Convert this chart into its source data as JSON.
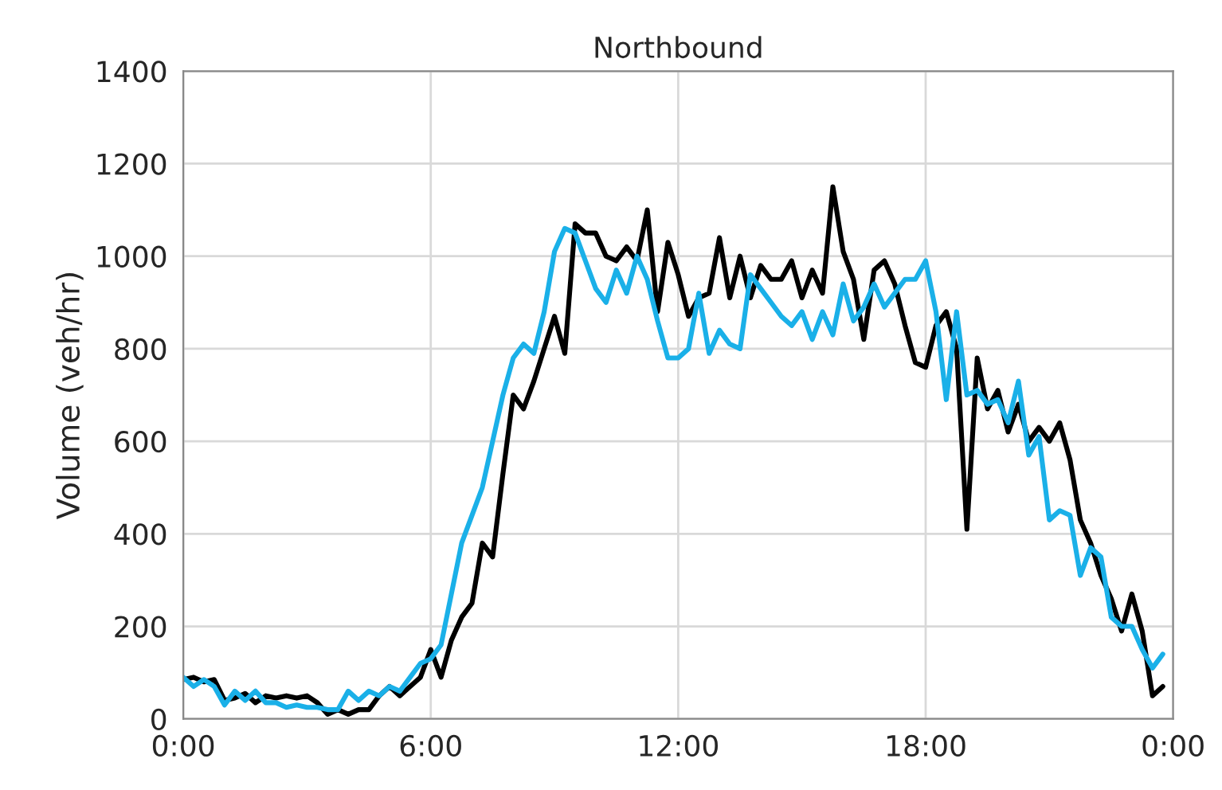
{
  "chart_data": {
    "type": "line",
    "title": "Northbound",
    "ylabel": "Volume (veh/hr)",
    "x": [
      0,
      0.25,
      0.5,
      0.75,
      1,
      1.25,
      1.5,
      1.75,
      2,
      2.25,
      2.5,
      2.75,
      3,
      3.25,
      3.5,
      3.75,
      4,
      4.25,
      4.5,
      4.75,
      5,
      5.25,
      5.5,
      5.75,
      6,
      6.25,
      6.5,
      6.75,
      7,
      7.25,
      7.5,
      7.75,
      8,
      8.25,
      8.5,
      8.75,
      9,
      9.25,
      9.5,
      9.75,
      10,
      10.25,
      10.5,
      10.75,
      11,
      11.25,
      11.5,
      11.75,
      12,
      12.25,
      12.5,
      12.75,
      13,
      13.25,
      13.5,
      13.75,
      14,
      14.25,
      14.5,
      14.75,
      15,
      15.25,
      15.5,
      15.75,
      16,
      16.25,
      16.5,
      16.75,
      17,
      17.25,
      17.5,
      17.75,
      18,
      18.25,
      18.5,
      18.75,
      19,
      19.25,
      19.5,
      19.75,
      20,
      20.25,
      20.5,
      20.75,
      21,
      21.25,
      21.5,
      21.75,
      22,
      22.25,
      22.5,
      22.75,
      23,
      23.25,
      23.5,
      23.75
    ],
    "series": [
      {
        "color": "#000000",
        "values": [
          85,
          90,
          80,
          85,
          40,
          45,
          55,
          35,
          50,
          45,
          50,
          45,
          50,
          35,
          10,
          20,
          10,
          20,
          20,
          50,
          70,
          50,
          70,
          90,
          150,
          90,
          170,
          220,
          250,
          380,
          350,
          530,
          700,
          670,
          730,
          800,
          870,
          790,
          1070,
          1050,
          1050,
          1000,
          990,
          1020,
          990,
          1100,
          880,
          1030,
          960,
          870,
          910,
          920,
          1040,
          910,
          1000,
          910,
          980,
          950,
          950,
          990,
          910,
          970,
          920,
          1150,
          1010,
          950,
          820,
          970,
          990,
          940,
          850,
          770,
          760,
          850,
          880,
          800,
          410,
          780,
          670,
          710,
          620,
          680,
          600,
          630,
          600,
          640,
          560,
          430,
          380,
          310,
          260,
          190,
          270,
          190,
          50,
          70
        ]
      },
      {
        "color": "#1ab0e8",
        "values": [
          90,
          70,
          85,
          70,
          30,
          60,
          40,
          60,
          35,
          35,
          25,
          30,
          25,
          25,
          20,
          20,
          60,
          40,
          60,
          50,
          70,
          60,
          90,
          120,
          130,
          160,
          270,
          380,
          440,
          500,
          600,
          700,
          780,
          810,
          790,
          880,
          1010,
          1060,
          1050,
          990,
          930,
          900,
          970,
          920,
          1000,
          950,
          860,
          780,
          780,
          800,
          920,
          790,
          840,
          810,
          800,
          960,
          930,
          900,
          870,
          850,
          880,
          820,
          880,
          830,
          940,
          860,
          890,
          940,
          890,
          920,
          950,
          950,
          990,
          880,
          690,
          880,
          700,
          710,
          680,
          690,
          640,
          730,
          570,
          610,
          430,
          450,
          440,
          310,
          370,
          350,
          220,
          200,
          200,
          150,
          110,
          140
        ]
      }
    ],
    "xlim": [
      0,
      24
    ],
    "xticks": [
      {
        "value": 0,
        "label": "0:00"
      },
      {
        "value": 6,
        "label": "6:00"
      },
      {
        "value": 12,
        "label": "12:00"
      },
      {
        "value": 18,
        "label": "18:00"
      },
      {
        "value": 24,
        "label": "0:00"
      }
    ],
    "ylim": [
      0,
      1400
    ],
    "yticks": [
      0,
      200,
      400,
      600,
      800,
      1000,
      1200,
      1400
    ],
    "grid": true,
    "line_style": "solid",
    "marker": "none"
  }
}
